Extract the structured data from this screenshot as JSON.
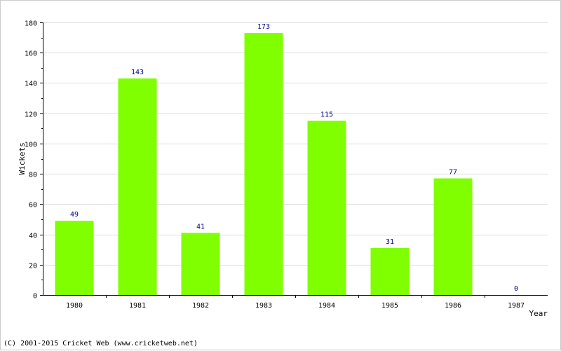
{
  "chart_data": {
    "type": "bar",
    "categories": [
      "1980",
      "1981",
      "1982",
      "1983",
      "1984",
      "1985",
      "1986",
      "1987"
    ],
    "values": [
      49,
      143,
      41,
      173,
      115,
      31,
      77,
      0
    ],
    "data_labels": [
      "49",
      "143",
      "41",
      "173",
      "115",
      "31",
      "77",
      "0"
    ],
    "xlabel": "Year",
    "ylabel": "Wickets",
    "ylim": [
      0,
      180
    ],
    "yticks": [
      0,
      20,
      40,
      60,
      80,
      100,
      120,
      140,
      160,
      180
    ],
    "ytick_labels": [
      "0",
      "20",
      "40",
      "60",
      "80",
      "100",
      "120",
      "140",
      "160",
      "180"
    ],
    "grid": true,
    "legend": "none",
    "colors": {
      "bar": "#7fff00",
      "data_label": "#000080",
      "grid": "#dddddd",
      "axis": "#000000"
    }
  },
  "footer": {
    "credit": "(C) 2001-2015 Cricket Web (www.cricketweb.net)"
  }
}
